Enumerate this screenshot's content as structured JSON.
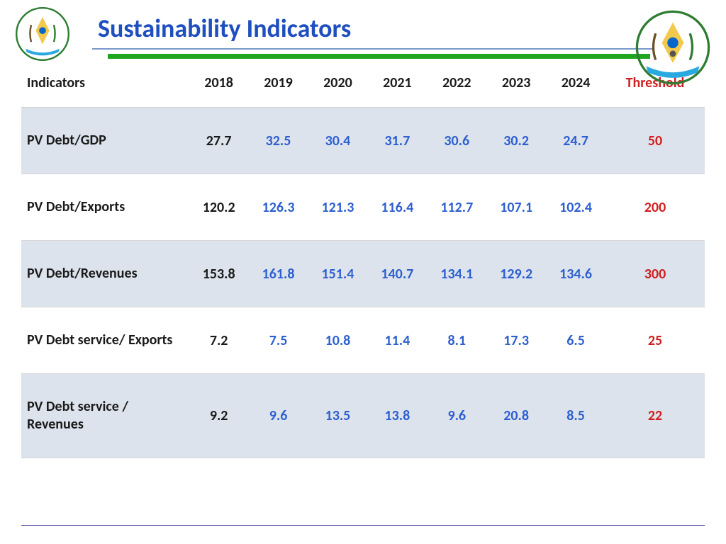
{
  "title": "Sustainability Indicators",
  "title_color": "#1f4fbf",
  "green_bar_color": "#1fa61f",
  "threshold_header_color": "#d01f1f",
  "projection_color": "#2d5fd0",
  "base_year_color": "#1a1a1a",
  "threshold_value_color": "#d01f1f",
  "columns": {
    "indicator": "Indicators",
    "years": [
      "2018",
      "2019",
      "2020",
      "2021",
      "2022",
      "2023",
      "2024"
    ],
    "threshold": "Threshold"
  },
  "rows": [
    {
      "indicator": "PV Debt/GDP",
      "values": [
        "27.7",
        "32.5",
        "30.4",
        "31.7",
        "30.6",
        "30.2",
        "24.7"
      ],
      "threshold": "50",
      "shaded": true
    },
    {
      "indicator": "PV Debt/Exports",
      "values": [
        "120.2",
        "126.3",
        "121.3",
        "116.4",
        "112.7",
        "107.1",
        "102.4"
      ],
      "threshold": "200",
      "shaded": false
    },
    {
      "indicator": "PV Debt/Revenues",
      "values": [
        "153.8",
        "161.8",
        "151.4",
        "140.7",
        "134.1",
        "129.2",
        "134.6"
      ],
      "threshold": "300",
      "shaded": true
    },
    {
      "indicator": "PV Debt service/ Exports",
      "values": [
        "7.2",
        "7.5",
        "10.8",
        "11.4",
        "8.1",
        "17.3",
        "6.5"
      ],
      "threshold": "25",
      "shaded": false
    },
    {
      "indicator": "PV Debt service / Revenues",
      "values": [
        "9.2",
        "9.6",
        "13.5",
        "13.8",
        "9.6",
        "20.8",
        "8.5"
      ],
      "threshold": "22",
      "shaded": true
    }
  ]
}
